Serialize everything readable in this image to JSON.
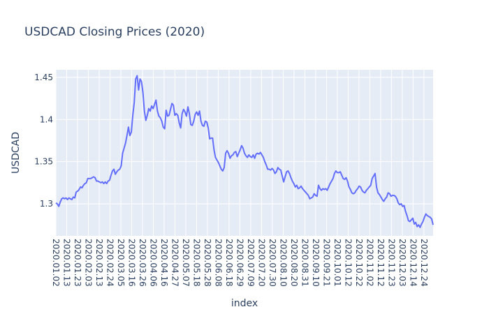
{
  "chart_data": {
    "type": "line",
    "title": "USDCAD Closing Prices (2020)",
    "xlabel": "index",
    "ylabel": "USDCAD",
    "grid": true,
    "ylim": [
      1.262,
      1.459
    ],
    "yticks": [
      1.3,
      1.35,
      1.4,
      1.45
    ],
    "ytick_labels": [
      "1.3",
      "1.35",
      "1.4",
      "1.45"
    ],
    "xticks": [
      "2020.01.02",
      "2020.01.13",
      "2020.01.23",
      "2020.02.03",
      "2020.02.13",
      "2020.02.24",
      "2020.03.05",
      "2020.03.16",
      "2020.03.26",
      "2020.04.06",
      "2020.04.16",
      "2020.04.27",
      "2020.05.07",
      "2020.05.18",
      "2020.05.28",
      "2020.06.08",
      "2020.06.18",
      "2020.06.29",
      "2020.07.09",
      "2020.07.20",
      "2020.07.30",
      "2020.08.10",
      "2020.08.20",
      "2020.08.31",
      "2020.09.10",
      "2020.09.21",
      "2020.10.01",
      "2020.10.12",
      "2020.10.22",
      "2020.11.02",
      "2020.11.12",
      "2020.11.23",
      "2020.12.03",
      "2020.12.14",
      "2020.12.24"
    ],
    "series": [
      {
        "color": "#636efa",
        "values": [
          1.301,
          1.3,
          1.297,
          1.302,
          1.306,
          1.307,
          1.306,
          1.307,
          1.305,
          1.307,
          1.306,
          1.305,
          1.308,
          1.307,
          1.314,
          1.315,
          1.317,
          1.32,
          1.319,
          1.322,
          1.324,
          1.325,
          1.33,
          1.33,
          1.33,
          1.331,
          1.332,
          1.331,
          1.327,
          1.327,
          1.326,
          1.325,
          1.326,
          1.324,
          1.326,
          1.324,
          1.327,
          1.328,
          1.334,
          1.339,
          1.341,
          1.335,
          1.338,
          1.34,
          1.341,
          1.345,
          1.36,
          1.366,
          1.372,
          1.381,
          1.391,
          1.381,
          1.385,
          1.405,
          1.42,
          1.448,
          1.452,
          1.435,
          1.448,
          1.445,
          1.432,
          1.41,
          1.399,
          1.405,
          1.413,
          1.41,
          1.416,
          1.413,
          1.418,
          1.423,
          1.41,
          1.404,
          1.402,
          1.398,
          1.391,
          1.389,
          1.411,
          1.404,
          1.405,
          1.412,
          1.419,
          1.417,
          1.405,
          1.407,
          1.405,
          1.396,
          1.39,
          1.407,
          1.412,
          1.409,
          1.404,
          1.415,
          1.407,
          1.394,
          1.393,
          1.398,
          1.406,
          1.409,
          1.405,
          1.41,
          1.398,
          1.393,
          1.392,
          1.398,
          1.397,
          1.39,
          1.377,
          1.378,
          1.378,
          1.364,
          1.355,
          1.352,
          1.349,
          1.345,
          1.341,
          1.339,
          1.343,
          1.36,
          1.363,
          1.36,
          1.354,
          1.357,
          1.358,
          1.361,
          1.362,
          1.356,
          1.36,
          1.364,
          1.369,
          1.366,
          1.36,
          1.357,
          1.355,
          1.358,
          1.356,
          1.355,
          1.358,
          1.354,
          1.359,
          1.36,
          1.359,
          1.361,
          1.358,
          1.355,
          1.35,
          1.346,
          1.341,
          1.341,
          1.34,
          1.342,
          1.34,
          1.336,
          1.338,
          1.343,
          1.341,
          1.34,
          1.333,
          1.326,
          1.332,
          1.338,
          1.339,
          1.336,
          1.331,
          1.327,
          1.324,
          1.32,
          1.322,
          1.318,
          1.319,
          1.321,
          1.318,
          1.316,
          1.314,
          1.312,
          1.31,
          1.306,
          1.307,
          1.308,
          1.312,
          1.31,
          1.309,
          1.322,
          1.318,
          1.316,
          1.318,
          1.317,
          1.318,
          1.316,
          1.32,
          1.324,
          1.327,
          1.33,
          1.336,
          1.339,
          1.337,
          1.337,
          1.338,
          1.334,
          1.33,
          1.329,
          1.331,
          1.327,
          1.32,
          1.317,
          1.313,
          1.312,
          1.313,
          1.316,
          1.318,
          1.321,
          1.32,
          1.316,
          1.314,
          1.313,
          1.316,
          1.318,
          1.32,
          1.322,
          1.33,
          1.333,
          1.336,
          1.32,
          1.313,
          1.311,
          1.308,
          1.305,
          1.303,
          1.306,
          1.308,
          1.313,
          1.312,
          1.309,
          1.31,
          1.31,
          1.309,
          1.306,
          1.301,
          1.299,
          1.3,
          1.297,
          1.298,
          1.291,
          1.286,
          1.28,
          1.279,
          1.281,
          1.283,
          1.276,
          1.278,
          1.273,
          1.275,
          1.272,
          1.276,
          1.279,
          1.284,
          1.288,
          1.286,
          1.285,
          1.284,
          1.282,
          1.275
        ]
      }
    ]
  }
}
